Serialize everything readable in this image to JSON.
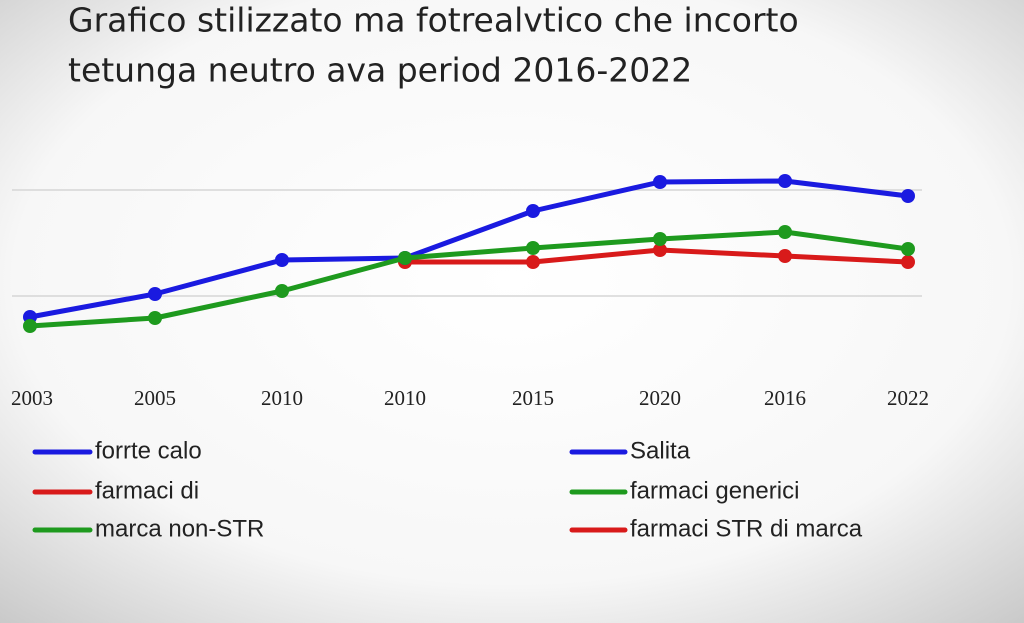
{
  "chart_data": {
    "type": "line",
    "title": [
      "Grafico stilizzato ma fotrealvtico che incorto",
      "tetunga neutro ava period 2016-2022"
    ],
    "categories": [
      "2003",
      "2005",
      "2010",
      "2010",
      "2015",
      "2020",
      "2016",
      "2022"
    ],
    "series": [
      {
        "name": "Salita",
        "color": "#1a1ae0",
        "values": [
          21.5,
          33,
          50,
          51,
          74.5,
          89,
          89.5,
          82
        ]
      },
      {
        "name": "farmaci generici",
        "color": "#1e9a1e",
        "values": [
          17,
          21,
          34.5,
          51,
          56,
          60.5,
          64,
          55.5
        ]
      },
      {
        "name": "farmaci STR di marca",
        "color": "#d81a1a",
        "values": [
          null,
          null,
          null,
          49,
          49,
          55,
          52,
          49
        ]
      }
    ],
    "legend_left": [
      {
        "label": "forrte calo",
        "color": "#1a1ae0"
      },
      {
        "label": "farmaci di",
        "color": "#d81a1a"
      },
      {
        "label": "marca non-STR",
        "color": "#1e9a1e"
      }
    ],
    "ylim": [
      0,
      100
    ],
    "grid_lines": [
      85,
      32
    ]
  }
}
